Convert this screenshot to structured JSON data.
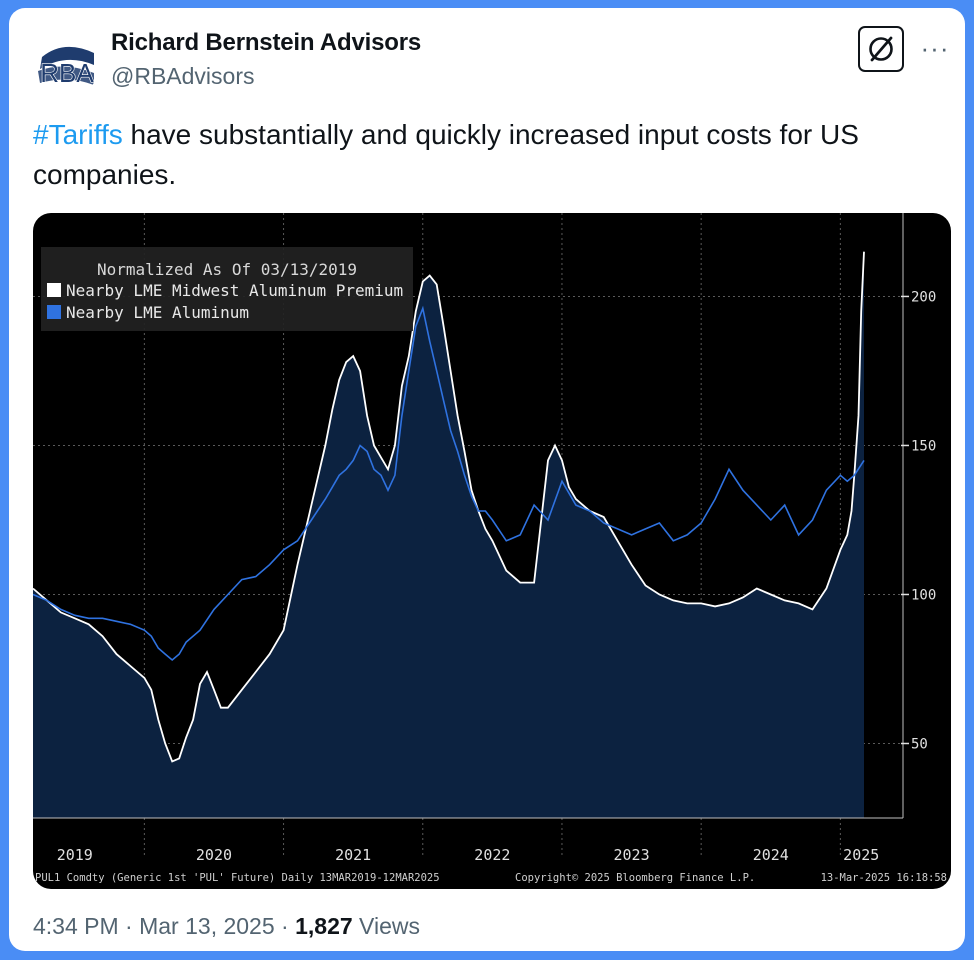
{
  "tweet": {
    "author_name": "Richard Bernstein Advisors",
    "author_handle": "@RBAdvisors",
    "avatar_text": "RBA",
    "hashtag": "#Tariffs",
    "text_rest": " have substantially and quickly increased input costs for US companies.",
    "time": "4:34 PM",
    "sep1": " · ",
    "date": "Mar 13, 2025",
    "sep2": " · ",
    "views_count": "1,827",
    "views_label": " Views"
  },
  "colors": {
    "brand_blue": "#1d9bf0",
    "premium_line": "#ffffff",
    "aluminum_line": "#2f72e0",
    "area_fill": "#0c2240"
  },
  "chart_data": {
    "type": "line",
    "title": "Normalized As Of 03/13/2019",
    "legend": [
      {
        "name": "Nearby LME Midwest Aluminum Premium",
        "color": "#ffffff"
      },
      {
        "name": "Nearby LME Aluminum",
        "color": "#2f72e0"
      }
    ],
    "legend_position": "top-left",
    "x_ticks": [
      "2019",
      "2020",
      "2021",
      "2022",
      "2023",
      "2024",
      "2025"
    ],
    "x_tick_positions": [
      2019.5,
      2020.5,
      2021.5,
      2022.5,
      2023.5,
      2024.5,
      2025.15
    ],
    "y_ticks": [
      50,
      100,
      150,
      200
    ],
    "ylim": [
      25,
      228
    ],
    "xlim": [
      2019.2,
      2025.45
    ],
    "grid": true,
    "footer_left": "PUL1 Comdty (Generic 1st 'PUL' Future)  Daily 13MAR2019-12MAR2025",
    "footer_center": "Copyright© 2025 Bloomberg Finance L.P.",
    "footer_right": "13-Mar-2025 16:18:58",
    "series": [
      {
        "name": "Nearby LME Midwest Aluminum Premium",
        "x": [
          2019.2,
          2019.3,
          2019.4,
          2019.5,
          2019.6,
          2019.7,
          2019.8,
          2019.9,
          2020.0,
          2020.05,
          2020.1,
          2020.15,
          2020.2,
          2020.25,
          2020.3,
          2020.35,
          2020.4,
          2020.45,
          2020.5,
          2020.55,
          2020.6,
          2020.7,
          2020.8,
          2020.9,
          2021.0,
          2021.1,
          2021.2,
          2021.3,
          2021.35,
          2021.4,
          2021.45,
          2021.5,
          2021.55,
          2021.6,
          2021.65,
          2021.7,
          2021.75,
          2021.8,
          2021.85,
          2021.9,
          2021.95,
          2022.0,
          2022.05,
          2022.1,
          2022.15,
          2022.2,
          2022.25,
          2022.3,
          2022.35,
          2022.4,
          2022.45,
          2022.5,
          2022.6,
          2022.7,
          2022.8,
          2022.9,
          2022.95,
          2023.0,
          2023.05,
          2023.1,
          2023.2,
          2023.3,
          2023.4,
          2023.5,
          2023.6,
          2023.7,
          2023.8,
          2023.9,
          2024.0,
          2024.1,
          2024.2,
          2024.3,
          2024.4,
          2024.5,
          2024.6,
          2024.7,
          2024.8,
          2024.9,
          2025.0,
          2025.05,
          2025.08,
          2025.1,
          2025.13,
          2025.15,
          2025.17
        ],
        "values": [
          102,
          98,
          94,
          92,
          90,
          86,
          80,
          76,
          72,
          68,
          58,
          50,
          44,
          45,
          52,
          58,
          70,
          74,
          68,
          62,
          62,
          68,
          74,
          80,
          88,
          110,
          130,
          150,
          162,
          172,
          178,
          180,
          175,
          160,
          150,
          146,
          142,
          150,
          170,
          180,
          195,
          205,
          207,
          204,
          190,
          175,
          160,
          148,
          135,
          128,
          122,
          118,
          108,
          104,
          104,
          145,
          150,
          145,
          136,
          132,
          128,
          126,
          118,
          110,
          103,
          100,
          98,
          97,
          97,
          96,
          97,
          99,
          102,
          100,
          98,
          97,
          95,
          102,
          115,
          120,
          128,
          140,
          160,
          195,
          215
        ]
      },
      {
        "name": "Nearby LME Aluminum",
        "x": [
          2019.2,
          2019.3,
          2019.4,
          2019.5,
          2019.6,
          2019.7,
          2019.8,
          2019.9,
          2020.0,
          2020.05,
          2020.1,
          2020.15,
          2020.2,
          2020.25,
          2020.3,
          2020.4,
          2020.5,
          2020.6,
          2020.7,
          2020.8,
          2020.9,
          2021.0,
          2021.1,
          2021.2,
          2021.3,
          2021.35,
          2021.4,
          2021.45,
          2021.5,
          2021.55,
          2021.6,
          2021.65,
          2021.7,
          2021.75,
          2021.8,
          2021.85,
          2021.9,
          2021.95,
          2022.0,
          2022.05,
          2022.1,
          2022.15,
          2022.2,
          2022.25,
          2022.3,
          2022.35,
          2022.4,
          2022.45,
          2022.5,
          2022.6,
          2022.7,
          2022.8,
          2022.9,
          2023.0,
          2023.1,
          2023.2,
          2023.3,
          2023.4,
          2023.5,
          2023.6,
          2023.7,
          2023.8,
          2023.9,
          2024.0,
          2024.1,
          2024.2,
          2024.3,
          2024.4,
          2024.5,
          2024.6,
          2024.7,
          2024.8,
          2024.9,
          2025.0,
          2025.05,
          2025.1,
          2025.17
        ],
        "values": [
          100,
          98,
          95,
          93,
          92,
          92,
          91,
          90,
          88,
          86,
          82,
          80,
          78,
          80,
          84,
          88,
          95,
          100,
          105,
          106,
          110,
          115,
          118,
          125,
          132,
          136,
          140,
          142,
          145,
          150,
          148,
          142,
          140,
          135,
          140,
          160,
          175,
          190,
          196,
          185,
          175,
          165,
          155,
          148,
          140,
          133,
          128,
          128,
          125,
          118,
          120,
          130,
          125,
          138,
          130,
          128,
          124,
          122,
          120,
          122,
          124,
          118,
          120,
          124,
          132,
          142,
          135,
          130,
          125,
          130,
          120,
          125,
          135,
          140,
          138,
          140,
          145
        ]
      }
    ]
  }
}
